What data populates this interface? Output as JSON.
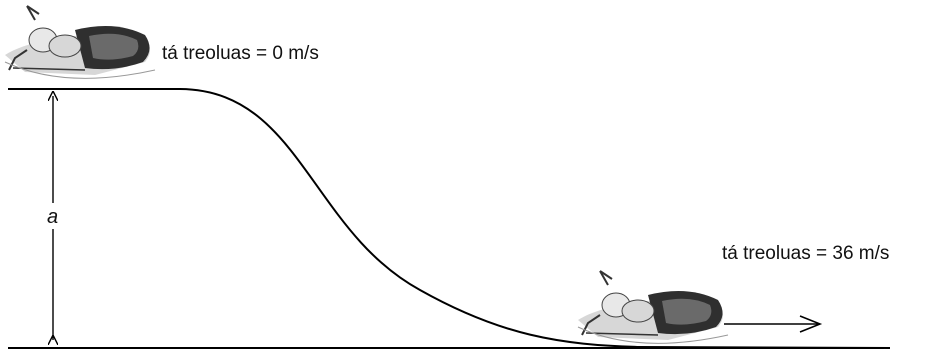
{
  "top_label": "tá treoluas = 0 m/s",
  "bottom_label": "tá treoluas = 36 m/s",
  "height_label": "a",
  "colors": {
    "line": "#000000",
    "sled_dark": "#555555",
    "sled_light": "#cfcfcf"
  },
  "icons": [
    "bobsled-icon",
    "arrow-right-icon"
  ]
}
